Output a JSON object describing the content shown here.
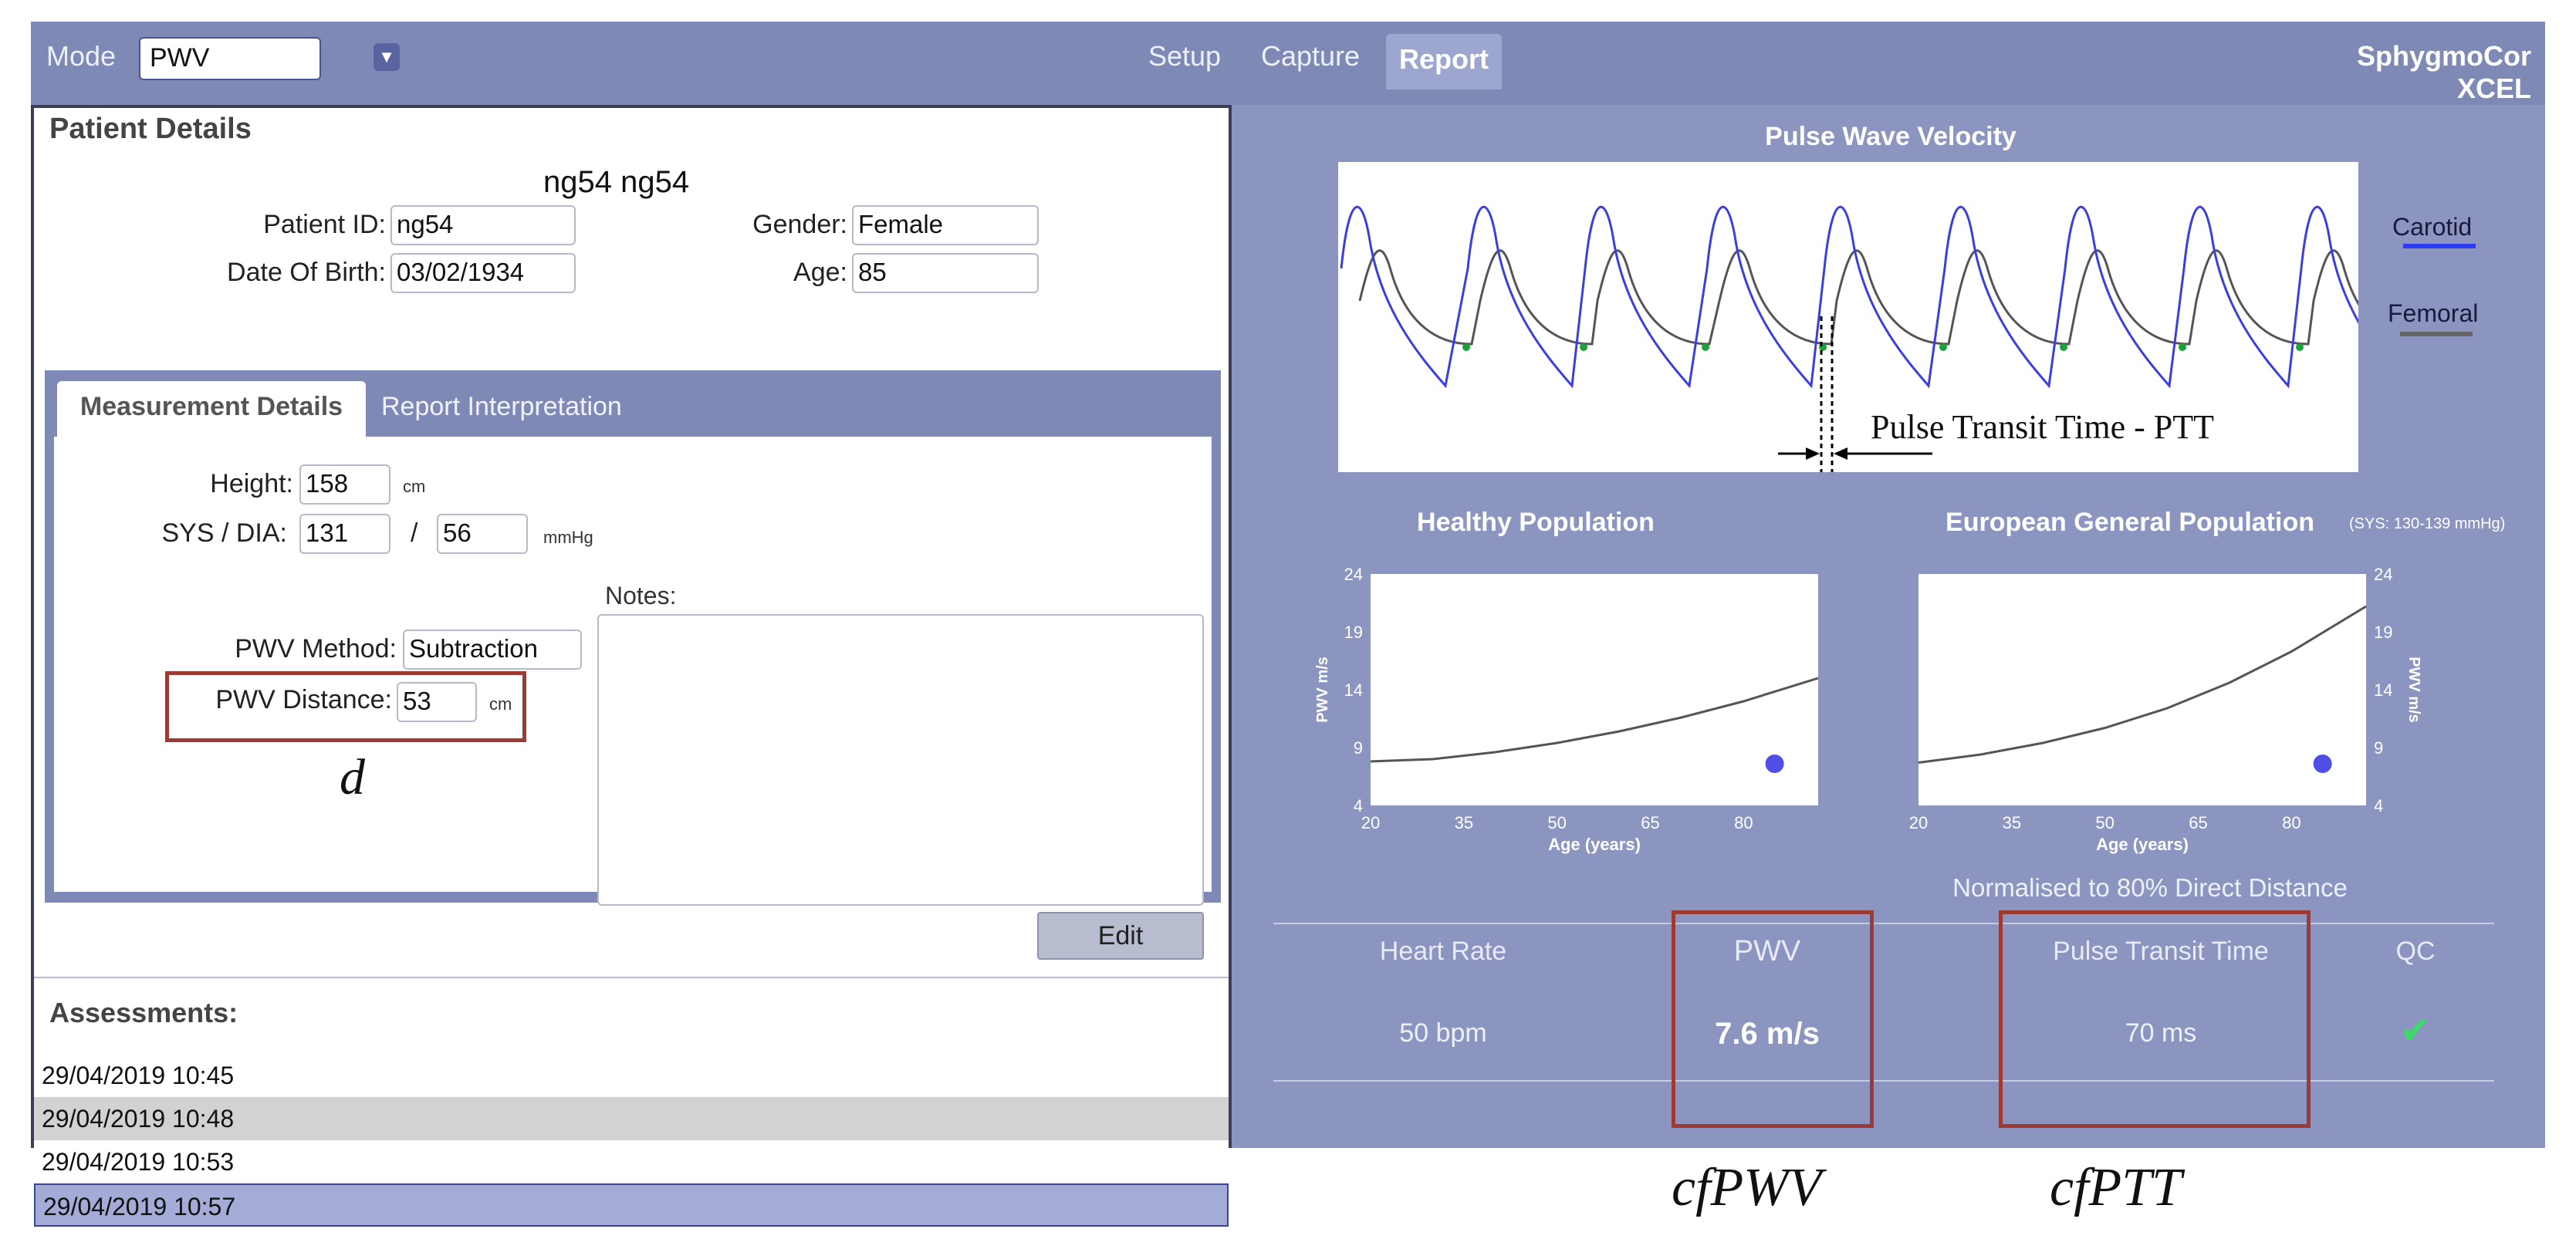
{
  "topbar": {
    "mode_label": "Mode",
    "mode_value": "PWV",
    "tabs": [
      "Setup",
      "Capture",
      "Report"
    ],
    "active_tab": "Report",
    "brand": "SphygmoCor XCEL"
  },
  "patient": {
    "section_title": "Patient Details",
    "name": "ng54 ng54",
    "id_label": "Patient ID:",
    "id_value": "ng54",
    "gender_label": "Gender:",
    "gender_value": "Female",
    "dob_label": "Date Of Birth:",
    "dob_value": "03/02/1934",
    "age_label": "Age:",
    "age_value": "85"
  },
  "measurement": {
    "tabs": [
      "Measurement Details",
      "Report Interpretation"
    ],
    "height_label": "Height:",
    "height_value": "158",
    "height_unit": "cm",
    "sysdia_label": "SYS / DIA:",
    "sys_value": "131",
    "slash": "/",
    "dia_value": "56",
    "pressure_unit": "mmHg",
    "notes_label": "Notes:",
    "method_label": "PWV Method:",
    "method_value": "Subtraction",
    "distance_label": "PWV Distance:",
    "distance_value": "53",
    "distance_unit": "cm",
    "annotation_d": "d",
    "edit_label": "Edit"
  },
  "assessments": {
    "title": "Assessments:",
    "rows": [
      "29/04/2019 10:45",
      "29/04/2019 10:48",
      "29/04/2019 10:53",
      "29/04/2019 10:57"
    ],
    "selected_index": 3
  },
  "pwv_chart": {
    "title": "Pulse Wave Velocity",
    "legend": [
      {
        "label": "Carotid",
        "color": "#2b3df0"
      },
      {
        "label": "Femoral",
        "color": "#666666"
      }
    ],
    "ptt_annotation": "Pulse Transit Time - PTT"
  },
  "chart_data": [
    {
      "type": "line",
      "title": "Healthy Population",
      "xlabel": "Age (years)",
      "ylabel": "PWV m/s",
      "x_ticks": [
        "20",
        "35",
        "50",
        "65",
        "80"
      ],
      "y_ticks": [
        "24",
        "19",
        "14",
        "9",
        "4"
      ],
      "xlim": [
        20,
        92
      ],
      "ylim": [
        4,
        24
      ],
      "series": [
        {
          "x": [
            20,
            30,
            40,
            50,
            60,
            70,
            80,
            92
          ],
          "values": [
            7.8,
            8.0,
            8.6,
            9.4,
            10.4,
            11.6,
            13.0,
            15.0
          ]
        }
      ],
      "point": {
        "x": 85,
        "y": 7.6
      }
    },
    {
      "type": "line",
      "title": "European General Population",
      "subtitle": "(SYS: 130-139 mmHg)",
      "xlabel": "Age (years)",
      "ylabel": "PWV m/s",
      "x_ticks": [
        "20",
        "35",
        "50",
        "65",
        "80"
      ],
      "y_ticks": [
        "24",
        "19",
        "14",
        "9",
        "4"
      ],
      "xlim": [
        20,
        92
      ],
      "ylim": [
        4,
        24
      ],
      "series": [
        {
          "x": [
            20,
            30,
            40,
            50,
            60,
            70,
            80,
            92
          ],
          "values": [
            7.7,
            8.4,
            9.4,
            10.7,
            12.4,
            14.6,
            17.3,
            21.2
          ]
        }
      ],
      "point": {
        "x": 85,
        "y": 7.6
      }
    }
  ],
  "results": {
    "normalised_note": "Normalised to 80% Direct Distance",
    "heart_rate_label": "Heart Rate",
    "heart_rate_value": "50 bpm",
    "pwv_label": "PWV",
    "pwv_value": "7.6 m/s",
    "ptt_label": "Pulse Transit Time",
    "ptt_value": "70 ms",
    "qc_label": "QC",
    "qc_symbol": "✔",
    "annotation_cfpwv": "cfPWV",
    "annotation_cfptt": "cfPTT"
  }
}
